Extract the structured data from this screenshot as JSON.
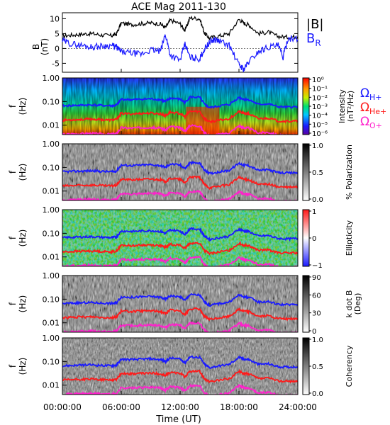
{
  "title": "ACE Mag 2011-130",
  "colors": {
    "btotal": "#000000",
    "br": "#1a1aff",
    "h": "#1a1aff",
    "he": "#ff1a1a",
    "o": "#ff22cc"
  },
  "chart_data": {
    "type": "line+heatmap",
    "x_axis": {
      "label": "Time (UT)",
      "ticks": [
        "00:00:00",
        "06:00:00",
        "12:00:00",
        "18:00:00",
        "24:00:00"
      ],
      "range_hours": [
        0,
        24
      ]
    },
    "b_panel": {
      "ylabel_top": "B",
      "ylabel_unit": "(nT)",
      "yticks": [
        "10",
        "5",
        "0",
        "-5"
      ],
      "ylim": [
        -8,
        12
      ],
      "legend": {
        "b_total": "|B|",
        "br_main": "B",
        "br_sub": "R"
      },
      "series": [
        {
          "key": "b_total",
          "x": [
            0,
            1,
            2,
            3,
            4,
            5,
            5.5,
            6,
            7,
            8,
            9,
            10,
            10.5,
            11,
            12,
            12.5,
            13,
            14,
            14.5,
            15,
            16,
            17,
            18,
            18.5,
            19,
            20,
            21,
            22,
            23,
            24
          ],
          "values": [
            4.2,
            4.5,
            4.8,
            5,
            4.5,
            4.3,
            4.8,
            8.5,
            8,
            8.3,
            8.6,
            8.2,
            7,
            9.5,
            8.3,
            6,
            10.3,
            10,
            5,
            3.5,
            4.2,
            5,
            9.8,
            8.5,
            8,
            5,
            5.5,
            4,
            3.8,
            4
          ]
        },
        {
          "key": "br",
          "x": [
            0,
            1,
            2,
            3,
            4,
            5,
            5.5,
            6,
            7,
            8,
            9,
            10,
            10.5,
            11,
            12,
            12.5,
            13,
            14,
            14.5,
            15,
            15.5,
            16,
            17,
            18,
            18.5,
            19,
            20,
            21,
            22,
            22.5,
            23,
            24
          ],
          "values": [
            2.5,
            1.5,
            1,
            0.5,
            0.8,
            1,
            0.5,
            -1.2,
            -1.5,
            -2,
            -0.5,
            -1,
            4.8,
            -2.3,
            -4,
            1.5,
            -3,
            -3.5,
            0,
            2,
            3,
            2.5,
            1,
            -5.5,
            -7,
            -4.5,
            -1,
            0.5,
            1,
            -3,
            3.5,
            3
          ]
        }
      ]
    },
    "freq_axis": {
      "ylabel_top": "f",
      "ylabel_unit": "(Hz)",
      "yticks": [
        "1.00",
        "0.10",
        "0.01"
      ],
      "ylim_log": [
        0.004,
        1.0
      ]
    },
    "gyrofreq_lines": {
      "labels": {
        "h_main": "Ω",
        "h_sub": "H+",
        "he_main": "Ω",
        "he_sub": "He+",
        "o_main": "Ω",
        "o_sub": "O+"
      },
      "x": [
        0,
        1,
        2,
        3,
        4,
        5,
        5.5,
        6,
        7,
        8,
        9,
        10,
        10.5,
        11,
        12,
        12.5,
        13,
        14,
        14.5,
        15,
        16,
        17,
        18,
        18.5,
        19,
        20,
        21,
        22,
        23,
        24
      ],
      "h_plus_hz": [
        0.065,
        0.068,
        0.07,
        0.072,
        0.068,
        0.066,
        0.07,
        0.125,
        0.12,
        0.125,
        0.13,
        0.12,
        0.1,
        0.14,
        0.125,
        0.09,
        0.155,
        0.15,
        0.075,
        0.055,
        0.065,
        0.075,
        0.15,
        0.125,
        0.12,
        0.075,
        0.08,
        0.06,
        0.058,
        0.06
      ]
    },
    "panels": [
      {
        "key": "intensity",
        "type": "heatmap",
        "cbar_label": "Intensity",
        "cbar_unit": "(nT²/Hz)",
        "cbar_ticks": [
          "10⁰",
          "10⁻¹",
          "10⁻²",
          "10⁻³",
          "10⁻⁴",
          "10⁻⁵",
          "10⁻⁶"
        ],
        "cbar_range_log10": [
          -6,
          0
        ]
      },
      {
        "key": "polarization",
        "type": "heatmap",
        "cbar_label": "% Polarization",
        "cbar_ticks": [
          "1.0",
          "0.5",
          "0.0"
        ],
        "cbar_range": [
          0,
          1
        ]
      },
      {
        "key": "ellipticity",
        "type": "heatmap",
        "cbar_label": "Ellipticity",
        "cbar_ticks": [
          "1",
          "0",
          "−1"
        ],
        "cbar_range": [
          -1,
          1
        ]
      },
      {
        "key": "kdotb",
        "type": "heatmap",
        "cbar_label": "k dot B",
        "cbar_unit": "(Deg)",
        "cbar_ticks": [
          "90",
          "60",
          "30",
          "0"
        ],
        "cbar_range": [
          0,
          90
        ]
      },
      {
        "key": "coherency",
        "type": "heatmap",
        "cbar_label": "Coherency",
        "cbar_ticks": [
          "1.0",
          "0.5",
          "0.0"
        ],
        "cbar_range": [
          0,
          1
        ]
      }
    ]
  }
}
